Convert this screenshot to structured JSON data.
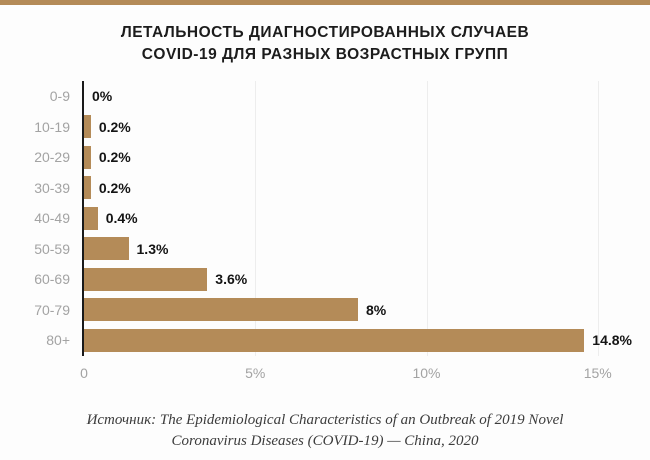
{
  "page": {
    "accent_color": "#b48b58",
    "background_color": "#fdfdfd",
    "axis_color": "#1a1a1a",
    "gridline_color": "#ededed",
    "muted_label_color": "#a3a3a3"
  },
  "title": {
    "line1": "ЛЕТАЛЬНОСТЬ ДИАГНОСТИРОВАННЫХ СЛУЧАЕВ",
    "line2": "COVID-19 ДЛЯ РАЗНЫХ ВОЗРАСТНЫХ ГРУПП"
  },
  "chart_data": {
    "type": "bar",
    "orientation": "horizontal",
    "title": "Летальность диагностированных случаев COVID-19 для разных возрастных групп",
    "categories": [
      "0-9",
      "10-19",
      "20-29",
      "30-39",
      "40-49",
      "50-59",
      "60-69",
      "70-79",
      "80+"
    ],
    "values": [
      0,
      0.2,
      0.2,
      0.2,
      0.4,
      1.3,
      3.6,
      8,
      14.8
    ],
    "value_labels": [
      "0%",
      "0.2%",
      "0.2%",
      "0.2%",
      "0.4%",
      "1.3%",
      "3.6%",
      "8%",
      "14.8%"
    ],
    "xlabel": "",
    "ylabel": "",
    "xlim": [
      0,
      16
    ],
    "x_ticks": [
      {
        "value": 0,
        "label": "0"
      },
      {
        "value": 5,
        "label": "5%"
      },
      {
        "value": 10,
        "label": "10%"
      },
      {
        "value": 15,
        "label": "15%"
      }
    ],
    "grid": true,
    "legend": false,
    "bar_color": "#b48b58"
  },
  "source": {
    "line1": "Источник: The Epidemiological Characteristics of an Outbreak of 2019 Novel",
    "line2": "Coronavirus Diseases (COVID-19) — China, 2020"
  }
}
